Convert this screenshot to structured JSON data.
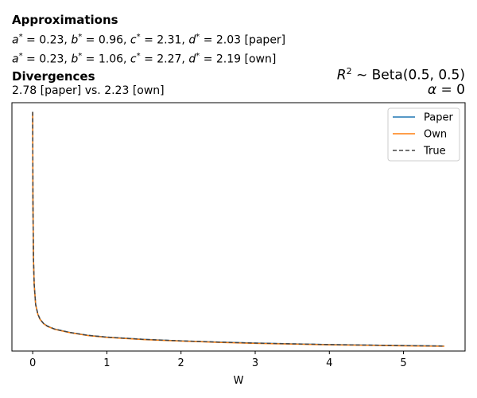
{
  "header": {
    "approx_title": "Approximations",
    "approx_paper": {
      "a": "a",
      "a_val": "= 0.23,",
      "b": "b",
      "b_val": "= 0.96,",
      "c": "c",
      "c_val": "= 2.31,",
      "d": "d",
      "d_val": "= 2.03",
      "tag": "[paper]"
    },
    "approx_own": {
      "a": "a",
      "a_val": "= 0.23,",
      "b": "b",
      "b_val": "= 1.06,",
      "c": "c",
      "c_val": "= 2.27,",
      "d": "d",
      "d_val": "= 2.19",
      "tag": "[own]"
    },
    "div_title": "Divergences",
    "div_text": "2.78 [paper] vs. 2.23 [own]",
    "prior_prefix": "R",
    "prior_sup": "2",
    "prior_tilde": "~",
    "prior_dist": "Beta(0.5, 0.5)",
    "alpha_symbol": "α",
    "alpha_value": "= 0"
  },
  "chart_data": {
    "type": "line",
    "xlabel": "W",
    "ylabel": "",
    "xticks": [
      0,
      1,
      2,
      3,
      4,
      5
    ],
    "xlim": [
      -0.28,
      5.83
    ],
    "ylim": [
      0,
      1
    ],
    "yticks_shown": false,
    "grid": false,
    "legend_position": "top-right",
    "series": [
      {
        "name": "Paper",
        "color": "#1f77b4",
        "dash": "solid"
      },
      {
        "name": "Own",
        "color": "#ff7f0e",
        "dash": "solid"
      },
      {
        "name": "True",
        "color": "#444444",
        "dash": "dashed"
      }
    ],
    "x": [
      0.0,
      0.003,
      0.01,
      0.02,
      0.04,
      0.07,
      0.1,
      0.15,
      0.2,
      0.3,
      0.5,
      0.75,
      1.0,
      1.5,
      2.0,
      2.5,
      3.0,
      3.5,
      4.0,
      4.5,
      5.0,
      5.55
    ],
    "y": [
      0.963,
      0.62,
      0.38,
      0.27,
      0.187,
      0.148,
      0.128,
      0.11,
      0.1,
      0.088,
      0.075,
      0.063,
      0.056,
      0.047,
      0.041,
      0.036,
      0.032,
      0.029,
      0.026,
      0.024,
      0.022,
      0.02
    ]
  }
}
